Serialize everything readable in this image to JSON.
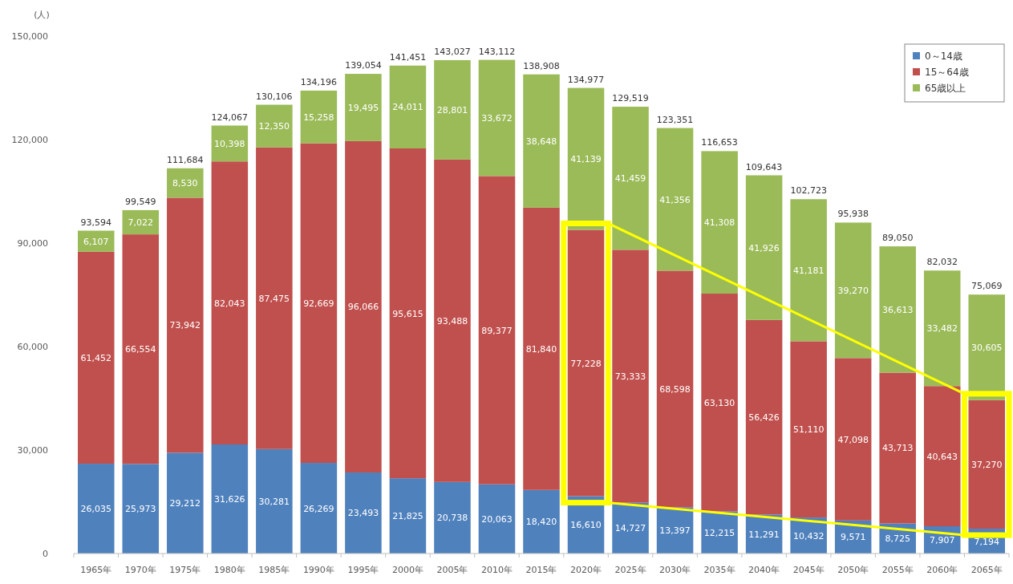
{
  "chart_data": {
    "type": "bar",
    "stacked": true,
    "ylabel": "(人)",
    "legend": "top right",
    "categories": [
      "1965年",
      "1970年",
      "1975年",
      "1980年",
      "1985年",
      "1990年",
      "1995年",
      "2000年",
      "2005年",
      "2010年",
      "2015年",
      "2020年",
      "2025年",
      "2030年",
      "2035年",
      "2040年",
      "2045年",
      "2050年",
      "2055年",
      "2060年",
      "2065年"
    ],
    "ylim": [
      0,
      150000
    ],
    "yticks": [
      {
        "value": 0,
        "label": "0"
      },
      {
        "value": 30000,
        "label": "30,000"
      },
      {
        "value": 60000,
        "label": "60,000"
      },
      {
        "value": 90000,
        "label": "90,000"
      },
      {
        "value": 120000,
        "label": "120,000"
      },
      {
        "value": 150000,
        "label": "150,000"
      }
    ],
    "series": [
      {
        "name": "0～14歳",
        "color": "#4f81bd",
        "values": [
          26035,
          25973,
          29212,
          31626,
          30281,
          26269,
          23493,
          21825,
          20738,
          20063,
          18420,
          16610,
          14727,
          13397,
          12215,
          11291,
          10432,
          9571,
          8725,
          7907,
          7194
        ],
        "value_labels": [
          "26,035",
          "25,973",
          "29,212",
          "31,626",
          "30,281",
          "26,269",
          "23,493",
          "21,825",
          "20,738",
          "20,063",
          "18,420",
          "16,610",
          "14,727",
          "13,397",
          "12,215",
          "11,291",
          "10,432",
          "9,571",
          "8,725",
          "7,907",
          "7,194"
        ]
      },
      {
        "name": "15～64歳",
        "color": "#c0504d",
        "values": [
          61452,
          66554,
          73942,
          82043,
          87475,
          92669,
          96066,
          95615,
          93488,
          89377,
          81840,
          77228,
          73333,
          68598,
          63130,
          56426,
          51110,
          47098,
          43713,
          40643,
          37270
        ],
        "value_labels": [
          "61,452",
          "66,554",
          "73,942",
          "82,043",
          "87,475",
          "92,669",
          "96,066",
          "95,615",
          "93,488",
          "89,377",
          "81,840",
          "77,228",
          "73,333",
          "68,598",
          "63,130",
          "56,426",
          "51,110",
          "47,098",
          "43,713",
          "40,643",
          "37,270"
        ]
      },
      {
        "name": "65歳以上",
        "color": "#9bbb59",
        "values": [
          6107,
          7022,
          8530,
          10398,
          12350,
          15258,
          19495,
          24011,
          28801,
          33672,
          38648,
          41139,
          41459,
          41356,
          41308,
          41926,
          41181,
          39270,
          36613,
          33482,
          30605
        ],
        "value_labels": [
          "6,107",
          "7,022",
          "8,530",
          "10,398",
          "12,350",
          "15,258",
          "19,495",
          "24,011",
          "28,801",
          "33,672",
          "38,648",
          "41,139",
          "41,459",
          "41,356",
          "41,308",
          "41,926",
          "41,181",
          "39,270",
          "36,613",
          "33,482",
          "30,605"
        ]
      }
    ],
    "totals": [
      "93,594",
      "99,549",
      "111,684",
      "124,067",
      "130,106",
      "134,196",
      "139,054",
      "141,451",
      "143,027",
      "143,112",
      "138,908",
      "134,977",
      "129,519",
      "123,351",
      "116,653",
      "109,643",
      "102,723",
      "95,938",
      "89,050",
      "82,032",
      "75,069"
    ]
  }
}
